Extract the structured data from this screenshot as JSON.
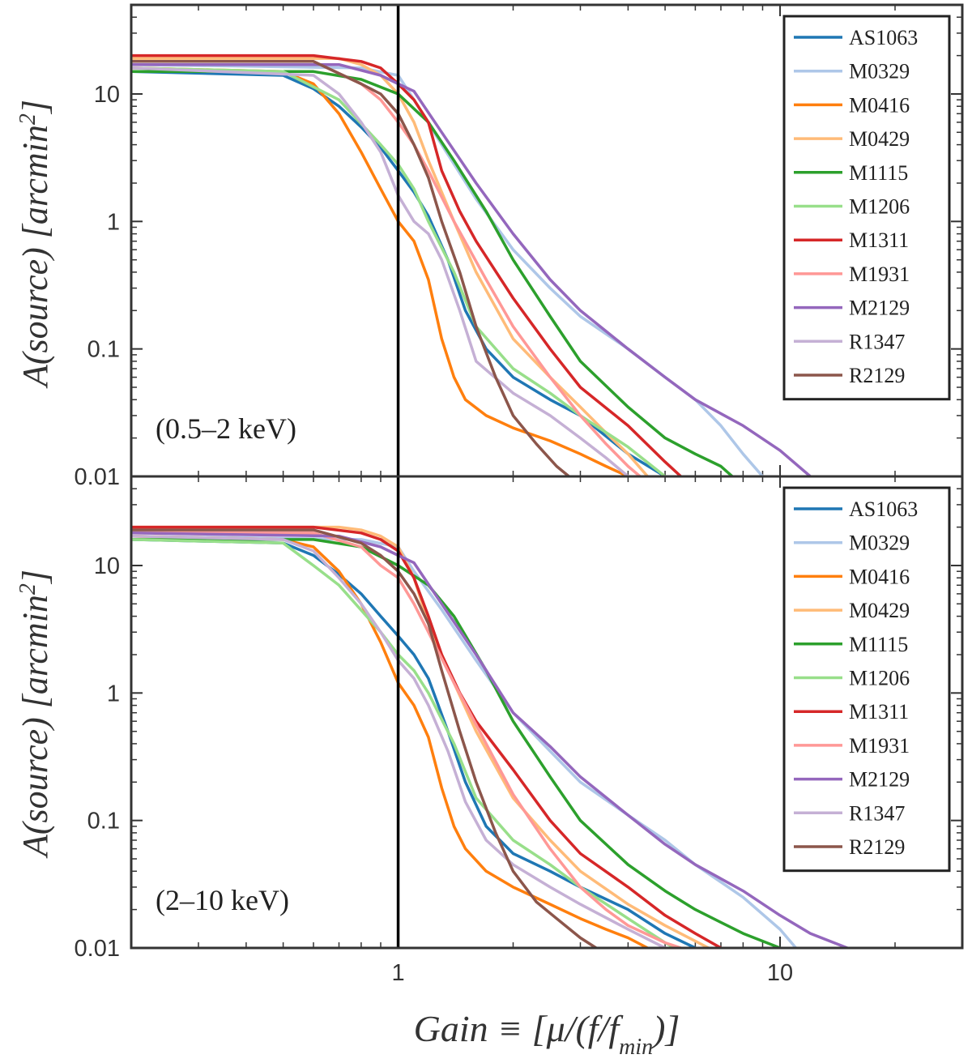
{
  "figure": {
    "xlabel": "Gain ≡ [μ/(f/f",
    "xlabel_sub": "min",
    "xlabel_end": ")]",
    "ylabel": "A(source) [arcmin",
    "ylabel_sup": "2",
    "ylabel_end": "]"
  },
  "chart_data": [
    {
      "type": "line",
      "title": "(0.5–2 keV)",
      "xscale": "log",
      "yscale": "log",
      "xlim": [
        0.2,
        30
      ],
      "ylim": [
        0.01,
        50
      ],
      "xticks": [
        1,
        10
      ],
      "xtick_labels": [
        "1",
        "10"
      ],
      "yticks": [
        0.01,
        0.1,
        1,
        10
      ],
      "ytick_labels": [
        "0.01",
        "0.1",
        "1",
        "10"
      ],
      "vline_x": 1,
      "legend_position": "top-right",
      "series": [
        {
          "name": "AS1063",
          "color": "#1f77b4",
          "x": [
            0.2,
            0.5,
            0.6,
            0.7,
            0.8,
            0.9,
            1.0,
            1.1,
            1.2,
            1.35,
            1.5,
            1.7,
            2.0,
            2.5,
            3.0,
            4.0,
            5.0
          ],
          "y": [
            15,
            14,
            11,
            8,
            5.5,
            3.8,
            2.5,
            1.7,
            1.1,
            0.5,
            0.2,
            0.1,
            0.06,
            0.04,
            0.03,
            0.015,
            0.01
          ]
        },
        {
          "name": "M0329",
          "color": "#aec7e8",
          "x": [
            0.2,
            0.8,
            1.0,
            1.1,
            1.3,
            1.6,
            2.0,
            2.5,
            3.0,
            4.0,
            5.0,
            6.0,
            7.0,
            8.0,
            9.0
          ],
          "y": [
            17,
            16,
            14,
            9,
            4,
            1.5,
            0.6,
            0.3,
            0.18,
            0.1,
            0.06,
            0.04,
            0.025,
            0.015,
            0.01
          ]
        },
        {
          "name": "M0416",
          "color": "#ff7f0e",
          "x": [
            0.2,
            0.5,
            0.6,
            0.7,
            0.8,
            0.9,
            1.0,
            1.1,
            1.2,
            1.3,
            1.4,
            1.5,
            1.7,
            2.0,
            2.5,
            3.0,
            3.5,
            4.0
          ],
          "y": [
            16,
            15,
            12,
            7,
            3.5,
            1.8,
            1.0,
            0.7,
            0.35,
            0.12,
            0.06,
            0.04,
            0.03,
            0.024,
            0.019,
            0.015,
            0.012,
            0.01
          ]
        },
        {
          "name": "M0429",
          "color": "#ffbb78",
          "x": [
            0.2,
            0.7,
            0.8,
            0.9,
            1.0,
            1.1,
            1.2,
            1.4,
            1.6,
            2.0,
            2.5,
            3.0,
            3.5,
            4.0,
            4.5
          ],
          "y": [
            19,
            19,
            17,
            14,
            10,
            6,
            3,
            1,
            0.4,
            0.12,
            0.06,
            0.035,
            0.022,
            0.015,
            0.01
          ]
        },
        {
          "name": "M1115",
          "color": "#2ca02c",
          "x": [
            0.2,
            0.6,
            0.8,
            1.0,
            1.2,
            1.4,
            1.7,
            2.0,
            2.5,
            3.0,
            4.0,
            5.0,
            6.0,
            7.0,
            7.5
          ],
          "y": [
            15,
            15,
            13,
            10,
            6,
            3,
            1.2,
            0.5,
            0.18,
            0.08,
            0.035,
            0.02,
            0.015,
            0.012,
            0.01
          ]
        },
        {
          "name": "M1206",
          "color": "#98df8a",
          "x": [
            0.2,
            0.5,
            0.7,
            0.9,
            1.0,
            1.1,
            1.2,
            1.4,
            1.6,
            2.0,
            2.5,
            3.0,
            4.0,
            5.0
          ],
          "y": [
            16,
            15,
            9,
            4,
            2.8,
            1.8,
            1.0,
            0.4,
            0.15,
            0.07,
            0.045,
            0.03,
            0.017,
            0.01
          ]
        },
        {
          "name": "M1311",
          "color": "#d62728",
          "x": [
            0.2,
            0.6,
            0.8,
            0.9,
            1.0,
            1.1,
            1.2,
            1.3,
            1.45,
            1.6,
            2.0,
            2.5,
            3.0,
            4.0,
            5.0,
            5.5
          ],
          "y": [
            20,
            20,
            18,
            16,
            12,
            9,
            6,
            2.5,
            1.2,
            0.7,
            0.25,
            0.1,
            0.05,
            0.025,
            0.013,
            0.01
          ]
        },
        {
          "name": "M1931",
          "color": "#ff9896",
          "x": [
            0.2,
            0.6,
            0.8,
            0.9,
            1.0,
            1.1,
            1.2,
            1.4,
            1.7,
            2.0,
            2.5,
            3.0,
            3.5,
            4.0,
            4.3
          ],
          "y": [
            18,
            18,
            12,
            9,
            6,
            4,
            2.5,
            1.0,
            0.35,
            0.15,
            0.06,
            0.03,
            0.018,
            0.012,
            0.01
          ]
        },
        {
          "name": "M2129",
          "color": "#9467bd",
          "x": [
            0.2,
            0.7,
            0.9,
            1.0,
            1.1,
            1.3,
            1.6,
            2.0,
            2.5,
            3.0,
            4.0,
            5.0,
            6.0,
            8.0,
            10.0,
            12.0
          ],
          "y": [
            17,
            17,
            14,
            12,
            10.5,
            5,
            2,
            0.8,
            0.35,
            0.2,
            0.1,
            0.06,
            0.04,
            0.025,
            0.016,
            0.01
          ]
        },
        {
          "name": "R1347",
          "color": "#c5b0d5",
          "x": [
            0.2,
            0.6,
            0.7,
            0.8,
            0.9,
            1.0,
            1.1,
            1.2,
            1.3,
            1.45,
            1.6,
            2.0,
            2.5,
            3.0,
            3.5,
            4.0
          ],
          "y": [
            16,
            14,
            10,
            6,
            3.5,
            1.6,
            1.0,
            0.8,
            0.5,
            0.2,
            0.08,
            0.045,
            0.03,
            0.02,
            0.014,
            0.01
          ]
        },
        {
          "name": "R2129",
          "color": "#8c564b",
          "x": [
            0.2,
            0.6,
            0.8,
            0.9,
            1.0,
            1.1,
            1.2,
            1.3,
            1.45,
            1.6,
            1.8,
            2.0,
            2.3,
            2.6,
            2.8
          ],
          "y": [
            18,
            18,
            12,
            10,
            7,
            4,
            2.2,
            1.0,
            0.4,
            0.15,
            0.06,
            0.03,
            0.018,
            0.012,
            0.01
          ]
        }
      ]
    },
    {
      "type": "line",
      "title": "(2–10 keV)",
      "xscale": "log",
      "yscale": "log",
      "xlim": [
        0.2,
        30
      ],
      "ylim": [
        0.01,
        50
      ],
      "xticks": [
        1,
        10
      ],
      "xtick_labels": [
        "1",
        "10"
      ],
      "yticks": [
        0.01,
        0.1,
        1,
        10
      ],
      "ytick_labels": [
        "0.01",
        "0.1",
        "1",
        "10"
      ],
      "vline_x": 1,
      "legend_position": "top-right",
      "series": [
        {
          "name": "AS1063",
          "color": "#1f77b4",
          "x": [
            0.2,
            0.5,
            0.6,
            0.7,
            0.8,
            0.9,
            1.0,
            1.1,
            1.2,
            1.35,
            1.5,
            1.7,
            2.0,
            2.5,
            3.0,
            4.0,
            5.0,
            6.0
          ],
          "y": [
            16,
            15,
            12,
            8.5,
            6,
            4,
            2.8,
            2.0,
            1.3,
            0.5,
            0.2,
            0.09,
            0.055,
            0.04,
            0.03,
            0.02,
            0.013,
            0.01
          ]
        },
        {
          "name": "M0329",
          "color": "#aec7e8",
          "x": [
            0.2,
            0.8,
            1.0,
            1.1,
            1.3,
            1.6,
            2.0,
            2.5,
            3.0,
            4.0,
            5.0,
            6.0,
            8.0,
            10.0,
            11.0
          ],
          "y": [
            17,
            16,
            14,
            9,
            4.5,
            1.8,
            0.7,
            0.35,
            0.2,
            0.11,
            0.07,
            0.045,
            0.025,
            0.014,
            0.01
          ]
        },
        {
          "name": "M0416",
          "color": "#ff7f0e",
          "x": [
            0.2,
            0.5,
            0.6,
            0.7,
            0.8,
            0.9,
            1.0,
            1.1,
            1.2,
            1.3,
            1.4,
            1.5,
            1.7,
            2.0,
            2.5,
            3.0,
            3.5,
            4.0,
            4.5
          ],
          "y": [
            17,
            16,
            14,
            9,
            5,
            2.5,
            1.2,
            0.8,
            0.45,
            0.18,
            0.09,
            0.06,
            0.04,
            0.03,
            0.022,
            0.017,
            0.014,
            0.012,
            0.01
          ]
        },
        {
          "name": "M0429",
          "color": "#ffbb78",
          "x": [
            0.2,
            0.7,
            0.8,
            0.9,
            1.0,
            1.1,
            1.2,
            1.4,
            1.6,
            2.0,
            2.5,
            3.0,
            4.0,
            5.0,
            6.5
          ],
          "y": [
            20,
            20,
            19,
            17,
            14,
            8,
            3.5,
            1.2,
            0.5,
            0.15,
            0.07,
            0.04,
            0.022,
            0.015,
            0.01
          ]
        },
        {
          "name": "M1115",
          "color": "#2ca02c",
          "x": [
            0.2,
            0.6,
            0.8,
            1.0,
            1.2,
            1.4,
            1.7,
            2.0,
            2.5,
            3.0,
            4.0,
            5.0,
            6.0,
            8.0,
            10.0
          ],
          "y": [
            16,
            16,
            14,
            10,
            7,
            4,
            1.5,
            0.6,
            0.22,
            0.1,
            0.045,
            0.028,
            0.02,
            0.013,
            0.01
          ]
        },
        {
          "name": "M1206",
          "color": "#98df8a",
          "x": [
            0.2,
            0.5,
            0.6,
            0.7,
            0.9,
            1.0,
            1.1,
            1.2,
            1.4,
            1.6,
            2.0,
            2.5,
            3.0,
            4.0,
            5.0,
            5.3
          ],
          "y": [
            16,
            15,
            10,
            7,
            3,
            2,
            1.5,
            1.0,
            0.4,
            0.15,
            0.07,
            0.045,
            0.03,
            0.017,
            0.011,
            0.01
          ]
        },
        {
          "name": "M1311",
          "color": "#d62728",
          "x": [
            0.2,
            0.6,
            0.8,
            0.9,
            1.0,
            1.1,
            1.2,
            1.3,
            1.45,
            1.6,
            2.0,
            2.5,
            3.0,
            4.0,
            5.0,
            6.0,
            7.0
          ],
          "y": [
            20,
            20,
            18,
            16,
            13,
            8,
            4,
            2,
            1.0,
            0.6,
            0.25,
            0.1,
            0.055,
            0.03,
            0.018,
            0.013,
            0.01
          ]
        },
        {
          "name": "M1931",
          "color": "#ff9896",
          "x": [
            0.2,
            0.6,
            0.8,
            0.9,
            1.0,
            1.1,
            1.2,
            1.4,
            1.7,
            2.0,
            2.5,
            3.0,
            3.5,
            4.0,
            5.0,
            5.5
          ],
          "y": [
            18,
            18,
            14,
            10,
            8,
            5,
            3,
            1.2,
            0.4,
            0.16,
            0.06,
            0.03,
            0.02,
            0.015,
            0.011,
            0.01
          ]
        },
        {
          "name": "M2129",
          "color": "#9467bd",
          "x": [
            0.2,
            0.7,
            0.9,
            1.0,
            1.1,
            1.3,
            1.6,
            2.0,
            2.5,
            3.0,
            4.0,
            5.0,
            6.0,
            8.0,
            10.0,
            12.0,
            15.0
          ],
          "y": [
            18,
            17,
            14,
            12,
            10.5,
            5,
            2,
            0.7,
            0.38,
            0.22,
            0.11,
            0.065,
            0.045,
            0.028,
            0.018,
            0.013,
            0.01
          ]
        },
        {
          "name": "R1347",
          "color": "#c5b0d5",
          "x": [
            0.2,
            0.5,
            0.6,
            0.7,
            0.8,
            0.9,
            1.0,
            1.1,
            1.2,
            1.35,
            1.5,
            1.7,
            2.0,
            2.5,
            3.0,
            4.0,
            5.0
          ],
          "y": [
            17,
            16,
            13,
            8,
            5,
            3,
            1.8,
            1.3,
            0.8,
            0.35,
            0.14,
            0.07,
            0.045,
            0.03,
            0.022,
            0.014,
            0.01
          ]
        },
        {
          "name": "R2129",
          "color": "#8c564b",
          "x": [
            0.2,
            0.6,
            0.8,
            0.9,
            1.0,
            1.1,
            1.2,
            1.3,
            1.45,
            1.6,
            1.8,
            2.0,
            2.3,
            2.6,
            3.0,
            3.3
          ],
          "y": [
            19,
            19,
            15,
            12,
            9,
            6,
            3.5,
            1.5,
            0.5,
            0.2,
            0.08,
            0.04,
            0.023,
            0.017,
            0.012,
            0.01
          ]
        }
      ]
    }
  ]
}
